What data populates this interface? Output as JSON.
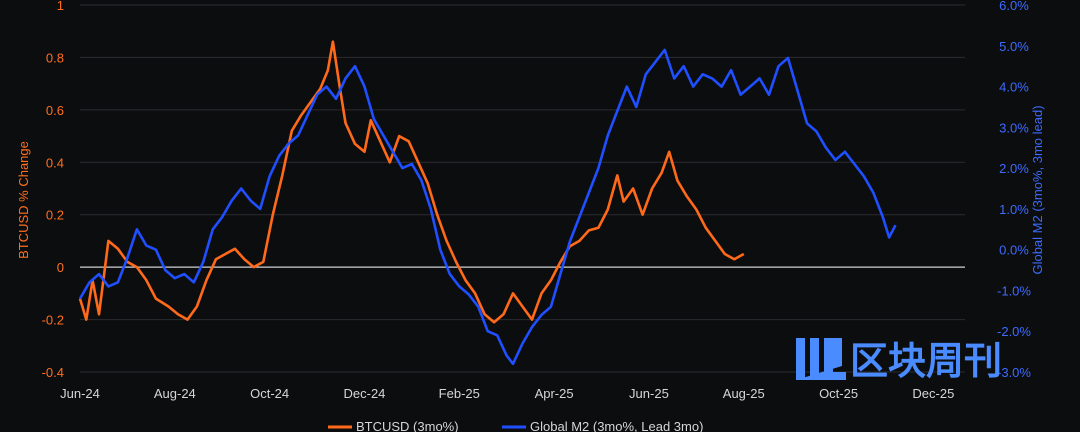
{
  "chart_data": {
    "type": "line",
    "title": "",
    "y_left_label": "BTCUSD % Change",
    "y_right_label": "Global M2 (3mo%, 3mo lead)",
    "y_left_range": [
      -0.4,
      1.0
    ],
    "y_left_ticks": [
      "1",
      "0.8",
      "0.6",
      "0.4",
      "0.2",
      "0",
      "-0.2",
      "-0.4"
    ],
    "y_right_range": [
      -3.0,
      6.0
    ],
    "y_right_ticks": [
      "6.0%",
      "5.0%",
      "4.0%",
      "3.0%",
      "2.0%",
      "1.0%",
      "0.0%",
      "-1.0%",
      "-2.0%",
      "-3.0%"
    ],
    "x_ticks": [
      "Jun-24",
      "Aug-24",
      "Oct-24",
      "Dec-24",
      "Feb-25",
      "Apr-25",
      "Jun-25",
      "Aug-25",
      "Oct-25",
      "Dec-25"
    ],
    "grid": true,
    "legend_position": "bottom",
    "series": [
      {
        "name": "BTCUSD (3mo%)",
        "axis": "left",
        "color": "#ff6a1a",
        "points": [
          [
            0.0,
            -0.12
          ],
          [
            0.1,
            -0.2
          ],
          [
            0.2,
            -0.05
          ],
          [
            0.3,
            -0.18
          ],
          [
            0.45,
            0.1
          ],
          [
            0.6,
            0.07
          ],
          [
            0.75,
            0.02
          ],
          [
            0.9,
            0.0
          ],
          [
            1.05,
            -0.05
          ],
          [
            1.2,
            -0.12
          ],
          [
            1.4,
            -0.15
          ],
          [
            1.55,
            -0.18
          ],
          [
            1.7,
            -0.2
          ],
          [
            1.85,
            -0.15
          ],
          [
            2.0,
            -0.05
          ],
          [
            2.15,
            0.03
          ],
          [
            2.3,
            0.05
          ],
          [
            2.45,
            0.07
          ],
          [
            2.6,
            0.03
          ],
          [
            2.75,
            0.0
          ],
          [
            2.9,
            0.02
          ],
          [
            3.05,
            0.2
          ],
          [
            3.2,
            0.35
          ],
          [
            3.35,
            0.52
          ],
          [
            3.5,
            0.58
          ],
          [
            3.65,
            0.63
          ],
          [
            3.8,
            0.68
          ],
          [
            3.92,
            0.75
          ],
          [
            4.0,
            0.86
          ],
          [
            4.1,
            0.7
          ],
          [
            4.2,
            0.55
          ],
          [
            4.35,
            0.47
          ],
          [
            4.5,
            0.44
          ],
          [
            4.6,
            0.56
          ],
          [
            4.75,
            0.48
          ],
          [
            4.9,
            0.4
          ],
          [
            5.05,
            0.5
          ],
          [
            5.2,
            0.48
          ],
          [
            5.35,
            0.4
          ],
          [
            5.5,
            0.32
          ],
          [
            5.65,
            0.2
          ],
          [
            5.8,
            0.1
          ],
          [
            5.95,
            0.02
          ],
          [
            6.1,
            -0.05
          ],
          [
            6.25,
            -0.1
          ],
          [
            6.4,
            -0.18
          ],
          [
            6.55,
            -0.21
          ],
          [
            6.7,
            -0.18
          ],
          [
            6.85,
            -0.1
          ],
          [
            7.0,
            -0.15
          ],
          [
            7.15,
            -0.2
          ],
          [
            7.3,
            -0.1
          ],
          [
            7.45,
            -0.05
          ],
          [
            7.6,
            0.02
          ],
          [
            7.75,
            0.08
          ],
          [
            7.9,
            0.1
          ],
          [
            8.05,
            0.14
          ],
          [
            8.2,
            0.15
          ],
          [
            8.35,
            0.22
          ],
          [
            8.5,
            0.35
          ],
          [
            8.6,
            0.25
          ],
          [
            8.75,
            0.3
          ],
          [
            8.9,
            0.2
          ],
          [
            9.05,
            0.3
          ],
          [
            9.2,
            0.36
          ],
          [
            9.32,
            0.44
          ],
          [
            9.45,
            0.33
          ],
          [
            9.6,
            0.27
          ],
          [
            9.75,
            0.22
          ],
          [
            9.9,
            0.15
          ],
          [
            10.05,
            0.1
          ],
          [
            10.2,
            0.05
          ],
          [
            10.35,
            0.03
          ],
          [
            10.5,
            0.05
          ]
        ]
      },
      {
        "name": "Global M2 (3mo%, Lead 3mo)",
        "axis": "right",
        "color": "#1f4fff",
        "points": [
          [
            0.0,
            -1.2
          ],
          [
            0.15,
            -0.8
          ],
          [
            0.3,
            -0.6
          ],
          [
            0.45,
            -0.9
          ],
          [
            0.6,
            -0.8
          ],
          [
            0.75,
            -0.2
          ],
          [
            0.9,
            0.5
          ],
          [
            1.05,
            0.1
          ],
          [
            1.2,
            0.0
          ],
          [
            1.35,
            -0.5
          ],
          [
            1.5,
            -0.7
          ],
          [
            1.65,
            -0.6
          ],
          [
            1.8,
            -0.8
          ],
          [
            1.95,
            -0.3
          ],
          [
            2.1,
            0.5
          ],
          [
            2.25,
            0.8
          ],
          [
            2.4,
            1.2
          ],
          [
            2.55,
            1.5
          ],
          [
            2.7,
            1.2
          ],
          [
            2.85,
            1.0
          ],
          [
            3.0,
            1.8
          ],
          [
            3.15,
            2.3
          ],
          [
            3.3,
            2.6
          ],
          [
            3.45,
            2.8
          ],
          [
            3.6,
            3.3
          ],
          [
            3.75,
            3.8
          ],
          [
            3.9,
            4.0
          ],
          [
            4.05,
            3.7
          ],
          [
            4.2,
            4.2
          ],
          [
            4.35,
            4.5
          ],
          [
            4.5,
            4.0
          ],
          [
            4.65,
            3.2
          ],
          [
            4.8,
            2.8
          ],
          [
            4.95,
            2.4
          ],
          [
            5.1,
            2.0
          ],
          [
            5.25,
            2.1
          ],
          [
            5.4,
            1.7
          ],
          [
            5.55,
            1.0
          ],
          [
            5.7,
            0.0
          ],
          [
            5.85,
            -0.6
          ],
          [
            6.0,
            -0.9
          ],
          [
            6.15,
            -1.1
          ],
          [
            6.3,
            -1.4
          ],
          [
            6.45,
            -2.0
          ],
          [
            6.6,
            -2.1
          ],
          [
            6.75,
            -2.6
          ],
          [
            6.85,
            -2.8
          ],
          [
            7.0,
            -2.3
          ],
          [
            7.15,
            -1.9
          ],
          [
            7.3,
            -1.6
          ],
          [
            7.45,
            -1.4
          ],
          [
            7.6,
            -0.6
          ],
          [
            7.75,
            0.2
          ],
          [
            7.9,
            0.8
          ],
          [
            8.05,
            1.4
          ],
          [
            8.2,
            2.0
          ],
          [
            8.35,
            2.8
          ],
          [
            8.5,
            3.4
          ],
          [
            8.65,
            4.0
          ],
          [
            8.8,
            3.5
          ],
          [
            8.95,
            4.3
          ],
          [
            9.1,
            4.6
          ],
          [
            9.25,
            4.9
          ],
          [
            9.4,
            4.2
          ],
          [
            9.55,
            4.5
          ],
          [
            9.7,
            4.0
          ],
          [
            9.85,
            4.3
          ],
          [
            10.0,
            4.2
          ],
          [
            10.15,
            4.0
          ],
          [
            10.3,
            4.4
          ],
          [
            10.45,
            3.8
          ],
          [
            10.6,
            4.0
          ],
          [
            10.75,
            4.2
          ],
          [
            10.9,
            3.8
          ],
          [
            11.05,
            4.5
          ],
          [
            11.2,
            4.7
          ],
          [
            11.35,
            3.9
          ],
          [
            11.5,
            3.1
          ],
          [
            11.65,
            2.9
          ],
          [
            11.8,
            2.5
          ],
          [
            11.95,
            2.2
          ],
          [
            12.1,
            2.4
          ],
          [
            12.25,
            2.1
          ],
          [
            12.4,
            1.8
          ],
          [
            12.55,
            1.4
          ],
          [
            12.7,
            0.8
          ],
          [
            12.8,
            0.3
          ],
          [
            12.9,
            0.6
          ]
        ]
      }
    ]
  },
  "legend": [
    {
      "label": "BTCUSD (3mo%)",
      "color": "#ff6a1a"
    },
    {
      "label": "Global M2 (3mo%, Lead 3mo)",
      "color": "#1f4fff"
    }
  ],
  "watermark": {
    "text": "区块周刊",
    "color": "#4a8cff"
  }
}
